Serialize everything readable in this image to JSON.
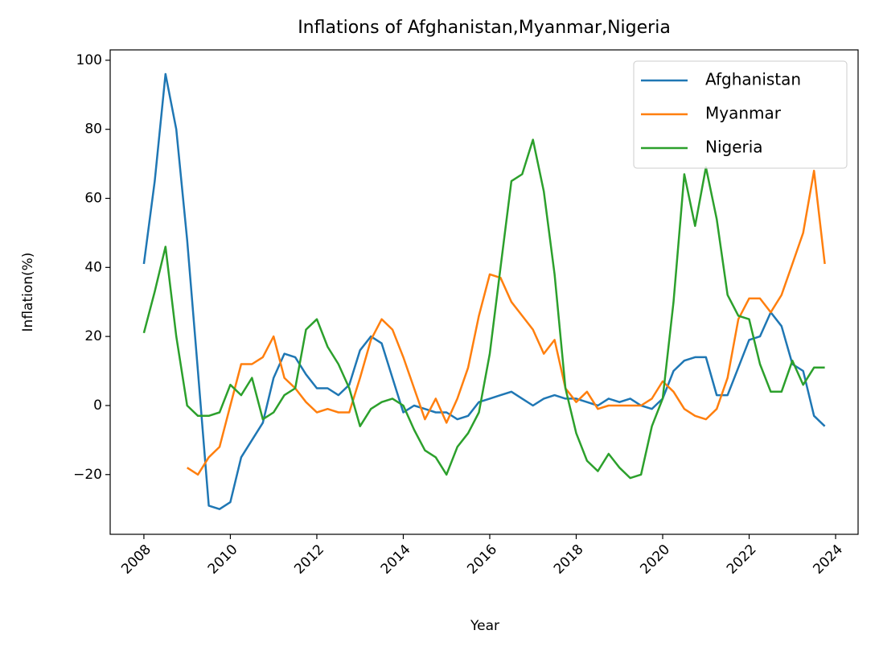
{
  "chart_data": {
    "type": "line",
    "title": "Inflations of Afghanistan,Myanmar,Nigeria",
    "x_label": "Year",
    "y_label": "Inflation(%)",
    "x": [
      2008.0,
      2008.25,
      2008.5,
      2008.75,
      2009.0,
      2009.25,
      2009.5,
      2009.75,
      2010.0,
      2010.25,
      2010.5,
      2010.75,
      2011.0,
      2011.25,
      2011.5,
      2011.75,
      2012.0,
      2012.25,
      2012.5,
      2012.75,
      2013.0,
      2013.25,
      2013.5,
      2013.75,
      2014.0,
      2014.25,
      2014.5,
      2014.75,
      2015.0,
      2015.25,
      2015.5,
      2015.75,
      2016.0,
      2016.25,
      2016.5,
      2016.75,
      2017.0,
      2017.25,
      2017.5,
      2017.75,
      2018.0,
      2018.25,
      2018.5,
      2018.75,
      2019.0,
      2019.25,
      2019.5,
      2019.75,
      2020.0,
      2020.25,
      2020.5,
      2020.75,
      2021.0,
      2021.25,
      2021.5,
      2021.75,
      2022.0,
      2022.25,
      2022.5,
      2022.75,
      2023.0,
      2023.25,
      2023.5,
      2023.75
    ],
    "series": [
      {
        "name": "Afghanistan",
        "color": "#1f77b4",
        "values": [
          41,
          65,
          96,
          80,
          48,
          10,
          -29,
          -30,
          -28,
          -15,
          -10,
          -5,
          8,
          15,
          14,
          9,
          5,
          5,
          3,
          6,
          16,
          20,
          18,
          8,
          -2,
          0,
          -1,
          -2,
          -2,
          -4,
          -3,
          1,
          2,
          3,
          4,
          2,
          0,
          2,
          3,
          2,
          2,
          1,
          0,
          2,
          1,
          2,
          0,
          -1,
          2,
          10,
          13,
          14,
          14,
          3,
          3,
          11,
          19,
          20,
          27,
          23,
          12,
          10,
          -3,
          -6
        ]
      },
      {
        "name": "Myanmar",
        "color": "#ff7f0e",
        "values": [
          null,
          null,
          null,
          null,
          -18,
          -20,
          -15,
          -12,
          0,
          12,
          12,
          14,
          20,
          8,
          5,
          1,
          -2,
          -1,
          -2,
          -2,
          8,
          19,
          25,
          22,
          14,
          5,
          -4,
          2,
          -5,
          2,
          11,
          26,
          38,
          37,
          30,
          26,
          22,
          15,
          19,
          5,
          1,
          4,
          -1,
          0,
          0,
          0,
          0,
          2,
          7,
          4,
          -1,
          -3,
          -4,
          -1,
          8,
          25,
          31,
          31,
          27,
          32,
          41,
          50,
          68,
          41
        ]
      },
      {
        "name": "Nigeria",
        "color": "#2ca02c",
        "values": [
          21,
          33,
          46,
          20,
          0,
          -3,
          -3,
          -2,
          6,
          3,
          8,
          -4,
          -2,
          3,
          5,
          22,
          25,
          17,
          12,
          5,
          -6,
          -1,
          1,
          2,
          0,
          -7,
          -13,
          -15,
          -20,
          -12,
          -8,
          -2,
          15,
          40,
          65,
          67,
          77,
          62,
          38,
          5,
          -8,
          -16,
          -19,
          -14,
          -18,
          -21,
          -20,
          -6,
          2,
          30,
          67,
          52,
          69,
          54,
          32,
          26,
          25,
          12,
          4,
          4,
          13,
          6,
          11,
          11
        ]
      }
    ],
    "xlim": [
      2007.22,
      2024.52
    ],
    "ylim": [
      -37.3,
      103.0
    ],
    "xticks": [
      2008,
      2010,
      2012,
      2014,
      2016,
      2018,
      2020,
      2022,
      2024
    ],
    "yticks": [
      {
        "value": -20,
        "label": "−20"
      },
      0,
      20,
      40,
      60,
      80,
      100
    ],
    "legend": "upper right"
  }
}
